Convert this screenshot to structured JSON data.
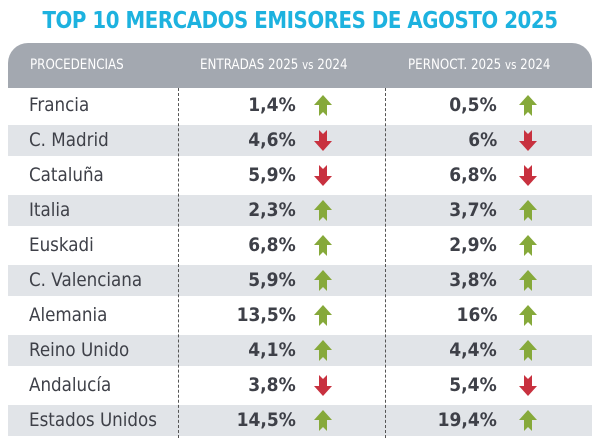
{
  "title": "TOP 10 MERCADOS EMISORES DE AGOSTO 2025",
  "headers": {
    "procedencias": "PROCEDENCIAS",
    "entradas": "ENTRADAS 2025",
    "entradas_vs": "vs",
    "entradas_year": "2024",
    "pernoct": "PERNOCT. 2025",
    "pernoct_vs": "vs",
    "pernoct_year": "2024"
  },
  "colors": {
    "title": "#1db2df",
    "header": "#a3a8b0",
    "up": "#86a93a",
    "down": "#c8313f",
    "row_shade": "#e1e4e8"
  },
  "rows": [
    {
      "name": "Francia",
      "entradas": "1,4%",
      "entradas_trend": "up",
      "pernoct": "0,5%",
      "pernoct_trend": "up"
    },
    {
      "name": "C. Madrid",
      "entradas": "4,6%",
      "entradas_trend": "down",
      "pernoct": "6%",
      "pernoct_trend": "down"
    },
    {
      "name": "Cataluña",
      "entradas": "5,9%",
      "entradas_trend": "down",
      "pernoct": "6,8%",
      "pernoct_trend": "down"
    },
    {
      "name": "Italia",
      "entradas": "2,3%",
      "entradas_trend": "up",
      "pernoct": "3,7%",
      "pernoct_trend": "up"
    },
    {
      "name": "Euskadi",
      "entradas": "6,8%",
      "entradas_trend": "up",
      "pernoct": "2,9%",
      "pernoct_trend": "up"
    },
    {
      "name": "C. Valenciana",
      "entradas": "5,9%",
      "entradas_trend": "up",
      "pernoct": "3,8%",
      "pernoct_trend": "up"
    },
    {
      "name": "Alemania",
      "entradas": "13,5%",
      "entradas_trend": "up",
      "pernoct": "16%",
      "pernoct_trend": "up"
    },
    {
      "name": "Reino Unido",
      "entradas": "4,1%",
      "entradas_trend": "up",
      "pernoct": "4,4%",
      "pernoct_trend": "up"
    },
    {
      "name": "Andalucía",
      "entradas": "3,8%",
      "entradas_trend": "down",
      "pernoct": "5,4%",
      "pernoct_trend": "down"
    },
    {
      "name": "Estados Unidos",
      "entradas": "14,5%",
      "entradas_trend": "up",
      "pernoct": "19,4%",
      "pernoct_trend": "up"
    }
  ]
}
